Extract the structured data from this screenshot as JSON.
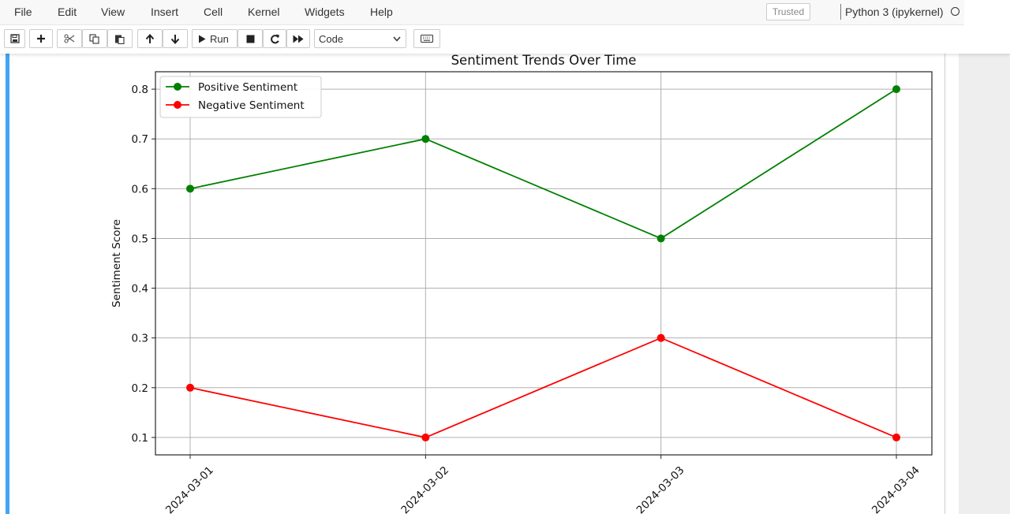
{
  "menu": {
    "items": [
      "File",
      "Edit",
      "View",
      "Insert",
      "Cell",
      "Kernel",
      "Widgets",
      "Help"
    ],
    "trusted": "Trusted",
    "kernel": "Python 3 (ipykernel)"
  },
  "toolbar": {
    "buttons": [
      "save-icon",
      "plus-icon",
      "scissors-icon",
      "copy-icon",
      "paste-icon",
      "arrow-up-icon",
      "arrow-down-icon",
      "run-icon",
      "stop-icon",
      "restart-icon",
      "fast-forward-icon",
      "keyboard-icon"
    ],
    "run_label": "Run",
    "cell_type": "Code"
  },
  "colors": {
    "positive": "#008000",
    "negative": "#ff0000",
    "cell_accent": "#42a5f5"
  },
  "chart_data": {
    "type": "line",
    "title": "Sentiment Trends Over Time",
    "xlabel": "",
    "ylabel": "Sentiment Score",
    "categories": [
      "2024-03-01",
      "2024-03-02",
      "2024-03-03",
      "2024-03-04"
    ],
    "series": [
      {
        "name": "Positive Sentiment",
        "values": [
          0.6,
          0.7,
          0.5,
          0.8
        ],
        "color": "#008000"
      },
      {
        "name": "Negative Sentiment",
        "values": [
          0.2,
          0.1,
          0.3,
          0.1
        ],
        "color": "#ff0000"
      }
    ],
    "ylim": [
      0.065,
      0.835
    ],
    "yticks": [
      0.1,
      0.2,
      0.3,
      0.4,
      0.5,
      0.6,
      0.7,
      0.8
    ],
    "ytick_labels": [
      "0.1",
      "0.2",
      "0.3",
      "0.4",
      "0.5",
      "0.6",
      "0.7",
      "0.8"
    ],
    "grid": true,
    "legend": "upper-left",
    "marker": "circle"
  }
}
